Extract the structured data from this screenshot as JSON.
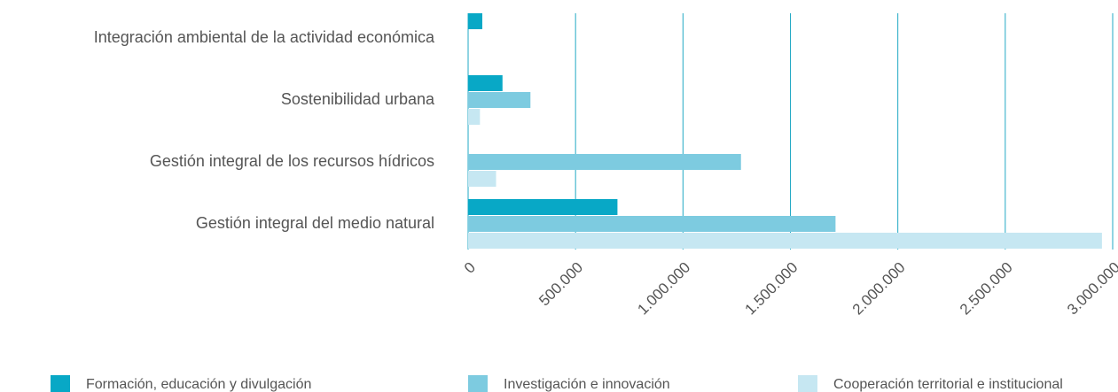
{
  "chart_data": {
    "type": "hbar",
    "categories": [
      "Integración ambiental de la actividad económica",
      "Sostenibilidad urbana",
      "Gestión integral de los recursos hídricos",
      "Gestión integral del medio natural"
    ],
    "series": [
      {
        "name": "Formación, educación y divulgación",
        "color": "#08a8c6",
        "values": [
          66000,
          160000,
          0,
          695000
        ]
      },
      {
        "name": "Investigación e innovación",
        "color": "#7dcbe0",
        "values": [
          0,
          290000,
          1270000,
          1710000
        ]
      },
      {
        "name": "Cooperación territorial e institucional",
        "color": "#c6e7f2",
        "values": [
          0,
          55000,
          130000,
          2950000
        ]
      }
    ],
    "xlim": [
      0,
      3000000
    ],
    "xticks": [
      0,
      {
        "value": 500000,
        "label": "500.000"
      },
      {
        "value": 1000000,
        "label": "1.000.000"
      },
      {
        "value": 1500000,
        "label": "1.500.000"
      },
      {
        "value": 2000000,
        "label": "2.000.000"
      },
      {
        "value": 2500000,
        "label": "2.500.000"
      },
      {
        "value": 3000000,
        "label": "3.000.000"
      }
    ],
    "grid": true,
    "legend": "bottom"
  }
}
